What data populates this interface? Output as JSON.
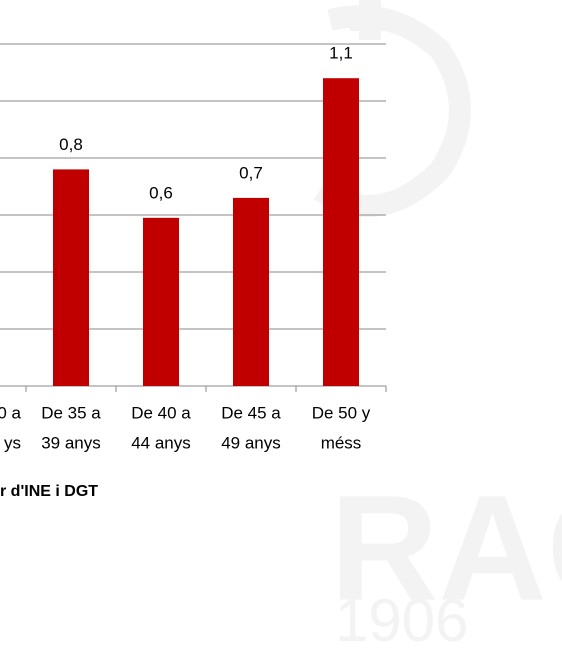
{
  "chart_data": {
    "type": "bar",
    "categories": [
      [
        "0 a",
        "ys"
      ],
      [
        "De 35 a",
        "39 anys"
      ],
      [
        "De 40 a",
        "44 anys"
      ],
      [
        "De 45 a",
        "49 anys"
      ],
      [
        "De 50 y",
        "méss"
      ]
    ],
    "values": [
      null,
      0.76,
      0.59,
      0.66,
      1.08
    ],
    "value_labels": [
      null,
      "0,8",
      "0,6",
      "0,7",
      "1,1"
    ],
    "color": "#c00000",
    "ylim": [
      0,
      1.2
    ],
    "yticks": [
      0,
      0.2,
      0.4,
      0.6,
      0.8,
      1,
      1.2
    ],
    "grid": true,
    "source": "r d'INE i DGT"
  },
  "watermark": {
    "text": "RACC",
    "year": "1906"
  }
}
